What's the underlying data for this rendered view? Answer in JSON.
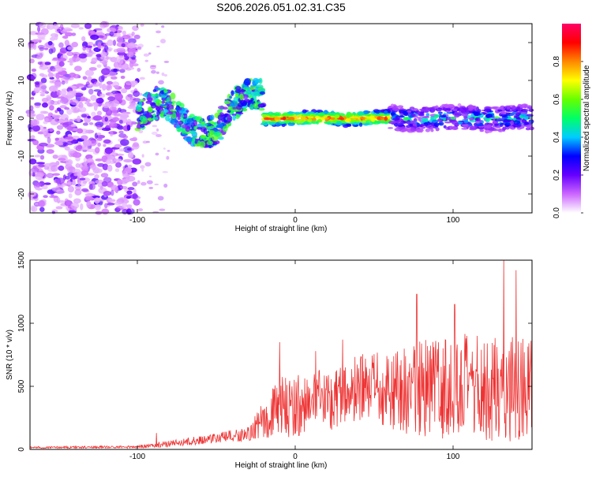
{
  "figure_title": "S206.2026.051.02.31.C35",
  "chart_data": [
    {
      "type": "heatmap",
      "title": "",
      "xlabel": "Height of straight line (km)",
      "ylabel": "Frequency (Hz)",
      "xlim": [
        -168,
        150
      ],
      "ylim": [
        -25,
        25
      ],
      "x_ticks": [
        -100,
        0,
        100
      ],
      "y_ticks": [
        -20,
        -10,
        0,
        10,
        20
      ],
      "colorbar": {
        "label": "Normalized spectral amplitude",
        "range": [
          0,
          1
        ],
        "ticks": [
          "0.0",
          "0.2",
          "0.4",
          "0.6",
          "0.8"
        ],
        "colors": [
          "#ffffff",
          "#cc66ff",
          "#6600ff",
          "#0000ff",
          "#00ccff",
          "#00ff66",
          "#66ff00",
          "#ffff00",
          "#ff8800",
          "#ff0000",
          "#ff0066"
        ]
      },
      "description_regions": {
        "noise_region_x": [
          -168,
          -100
        ],
        "signal_band_center_hz": 0,
        "signal_band_x": [
          -100,
          150
        ]
      }
    },
    {
      "type": "line",
      "title": "",
      "xlabel": "Height of straight line (km)",
      "ylabel": "SNR (10 * v/v)",
      "xlim": [
        -168,
        150
      ],
      "ylim": [
        0,
        1500
      ],
      "x_ticks": [
        -100,
        0,
        100
      ],
      "y_ticks": [
        0,
        500,
        1000,
        1500
      ],
      "line_color": "#ee3333",
      "envelope": {
        "x": [
          -168,
          -100,
          -90,
          -70,
          -50,
          -30,
          -20,
          -10,
          0,
          10,
          20,
          30,
          40,
          60,
          80,
          100,
          120,
          140,
          150
        ],
        "mean": [
          15,
          20,
          30,
          60,
          90,
          120,
          230,
          330,
          350,
          370,
          390,
          440,
          470,
          470,
          480,
          500,
          480,
          500,
          480
        ],
        "amp": [
          8,
          10,
          20,
          30,
          40,
          60,
          150,
          250,
          250,
          250,
          250,
          250,
          280,
          320,
          380,
          420,
          430,
          450,
          400
        ]
      },
      "peaks": [
        {
          "x": -88,
          "y": 130
        },
        {
          "x": -10,
          "y": 850
        },
        {
          "x": 13,
          "y": 780
        },
        {
          "x": 30,
          "y": 870
        },
        {
          "x": 77,
          "y": 1230
        },
        {
          "x": 101,
          "y": 1150
        },
        {
          "x": 132,
          "y": 1500
        },
        {
          "x": 140,
          "y": 1420
        }
      ]
    }
  ]
}
